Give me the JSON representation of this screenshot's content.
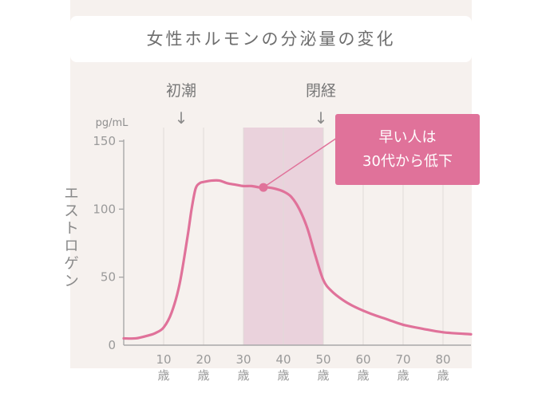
{
  "title": "女性ホルモンの分泌量の変化",
  "chart_data": {
    "type": "line",
    "title": "女性ホルモンの分泌量の変化",
    "ylabel": "エストロゲン",
    "yunit": "pg/mL",
    "ylim": [
      0,
      160
    ],
    "yticks": [
      {
        "value": 0,
        "label": "0"
      },
      {
        "value": 50,
        "label": "50"
      },
      {
        "value": 100,
        "label": "100"
      },
      {
        "value": 150,
        "label": "150"
      }
    ],
    "xlim": [
      0,
      87
    ],
    "xticks": [
      {
        "value": 10,
        "label": "10",
        "unit": "歳"
      },
      {
        "value": 20,
        "label": "20",
        "unit": "歳"
      },
      {
        "value": 30,
        "label": "30",
        "unit": "歳"
      },
      {
        "value": 40,
        "label": "40",
        "unit": "歳"
      },
      {
        "value": 50,
        "label": "50",
        "unit": "歳"
      },
      {
        "value": 60,
        "label": "60",
        "unit": "歳"
      },
      {
        "value": 70,
        "label": "70",
        "unit": "歳"
      },
      {
        "value": 80,
        "label": "80",
        "unit": "歳"
      }
    ],
    "grid": true,
    "series": [
      {
        "x": [
          0,
          3,
          6,
          8,
          10,
          12,
          14,
          16,
          17,
          18,
          19,
          20,
          22,
          24,
          26,
          28,
          30,
          32,
          34,
          35,
          36,
          38,
          40,
          42,
          44,
          46,
          48,
          50,
          52,
          55,
          58,
          62,
          66,
          70,
          75,
          80,
          87
        ],
        "y": [
          5,
          5,
          7,
          9,
          13,
          24,
          45,
          80,
          100,
          115,
          119,
          120,
          121,
          121,
          119,
          118,
          117,
          117,
          116,
          116,
          116,
          115,
          113,
          109,
          100,
          86,
          66,
          48,
          40,
          33,
          28,
          23,
          19,
          15,
          12,
          9.5,
          8
        ]
      }
    ],
    "highlight_range": [
      30,
      50
    ],
    "highlight_point": {
      "x": 35,
      "y": 116
    },
    "events": [
      {
        "x": 15,
        "label": "初潮",
        "arrow": "↓"
      },
      {
        "x": 50,
        "label": "閉経",
        "arrow": "↓"
      }
    ],
    "callout": {
      "lines": [
        "早い人は",
        "30代から低下"
      ]
    }
  },
  "colors": {
    "line": "#e0729a",
    "highlight_fill": "#ead2dc",
    "callout_bg": "#e0729a",
    "grid": "#e0dbd8",
    "axis": "#a8a8a8"
  }
}
